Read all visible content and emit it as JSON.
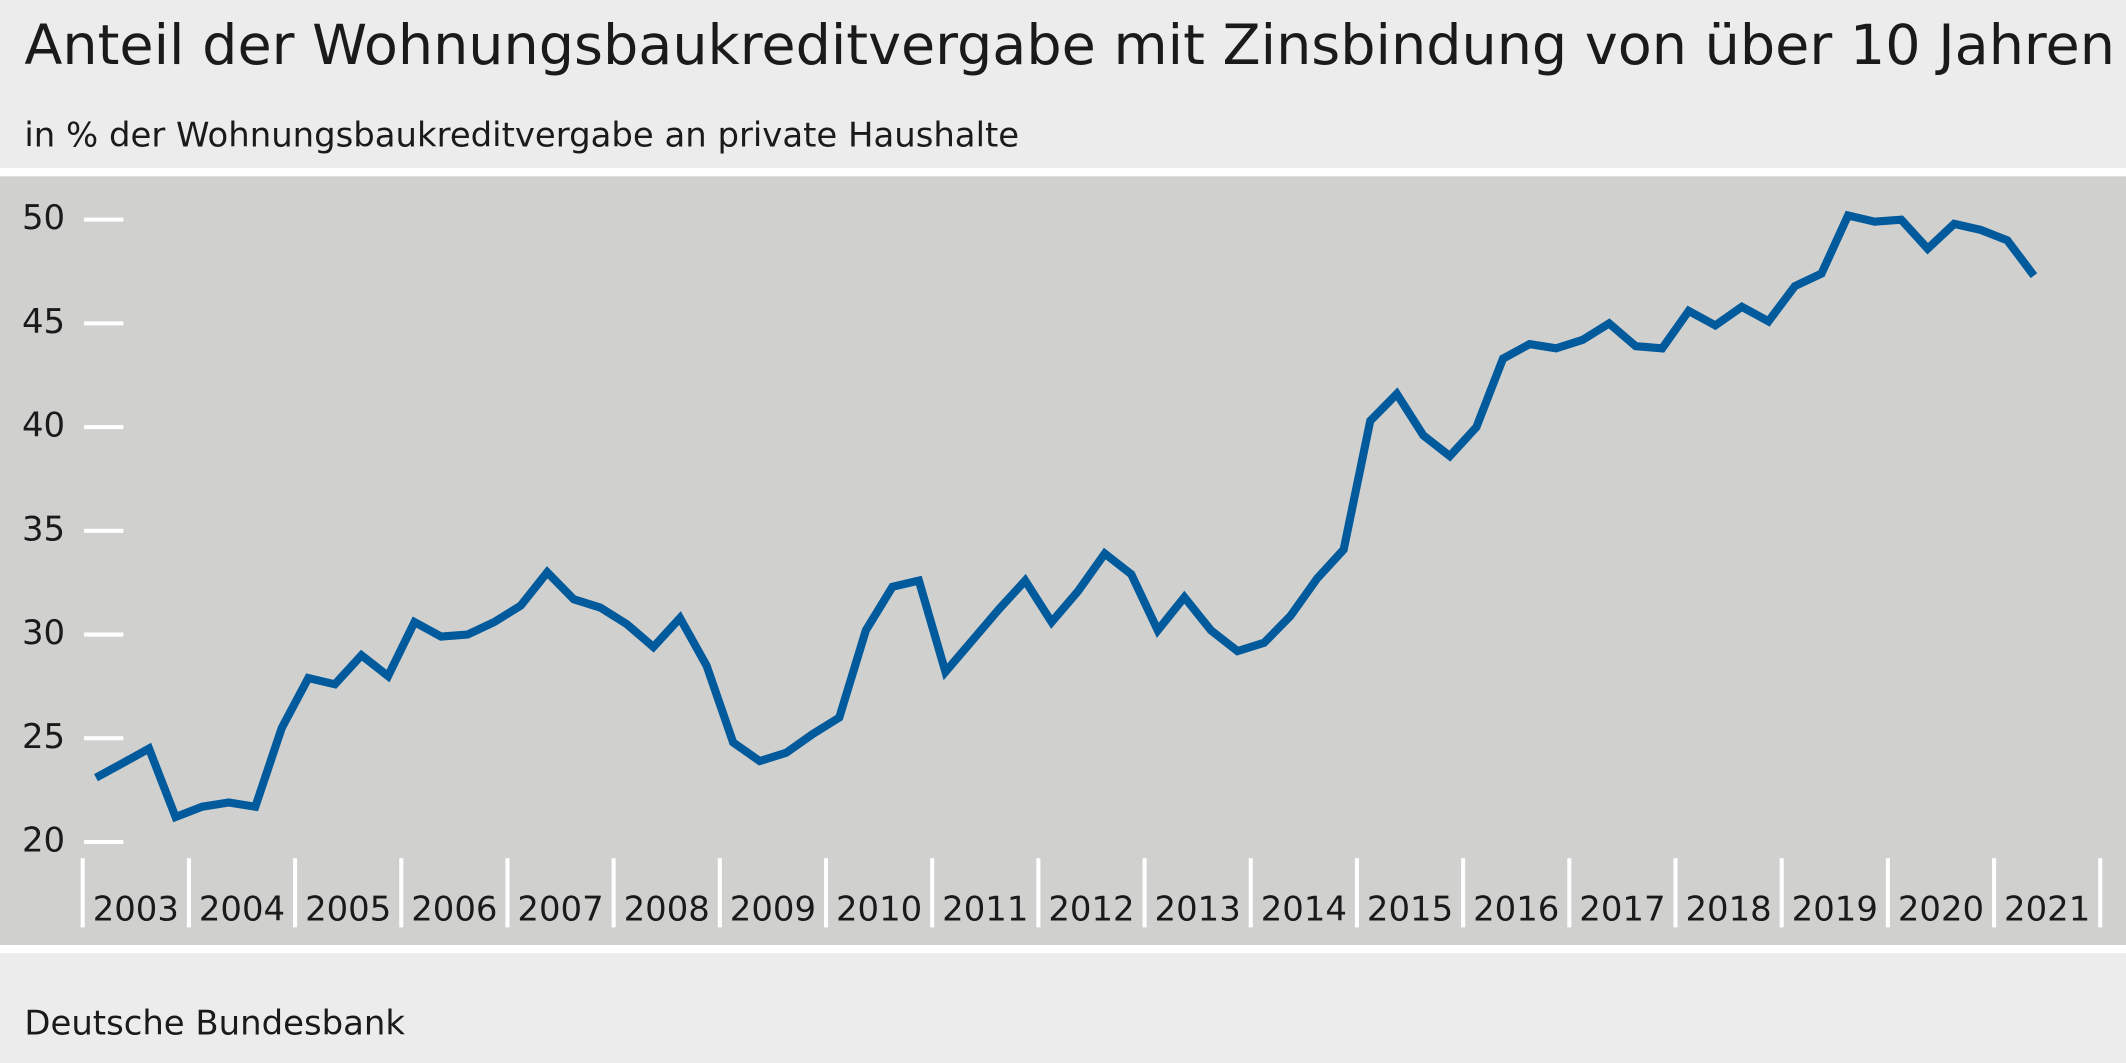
{
  "chart_data": {
    "type": "line",
    "title": "Anteil der Wohnungsbaukreditvergabe mit Zinsbindung von über 10 Jahren",
    "subtitle": "in % der Wohnungsbaukreditvergabe an private Haushalte",
    "source": "Deutsche Bundesbank",
    "year_labels": [
      "2003",
      "2004",
      "2005",
      "2006",
      "2007",
      "2008",
      "2009",
      "2010",
      "2011",
      "2012",
      "2013",
      "2014",
      "2015",
      "2016",
      "2017",
      "2018",
      "2019",
      "2020",
      "2021"
    ],
    "series": [
      {
        "color": "#005a9c",
        "values": [
          23.1,
          23.8,
          24.5,
          21.2,
          21.7,
          21.9,
          21.7,
          25.5,
          27.9,
          27.6,
          29.0,
          28.0,
          30.6,
          29.9,
          30.0,
          30.6,
          31.4,
          33.0,
          31.7,
          31.3,
          30.5,
          29.4,
          30.8,
          28.5,
          24.8,
          23.9,
          24.3,
          25.2,
          26.0,
          30.2,
          32.3,
          32.6,
          28.2,
          29.7,
          31.2,
          32.6,
          30.6,
          32.1,
          33.9,
          32.9,
          30.2,
          31.8,
          30.2,
          29.2,
          29.6,
          30.9,
          32.7,
          34.1,
          40.3,
          41.6,
          39.6,
          38.6,
          40.0,
          43.3,
          44.0,
          43.8,
          44.2,
          45.0,
          43.9,
          43.8,
          45.6,
          44.9,
          45.8,
          45.1,
          46.8,
          47.4,
          50.2,
          49.9,
          50.0,
          48.6,
          49.8,
          49.5,
          49.0,
          47.3
        ]
      }
    ],
    "ylim": [
      20,
      52
    ],
    "yticks": [
      20,
      25,
      30,
      35,
      40,
      45,
      50
    ]
  }
}
